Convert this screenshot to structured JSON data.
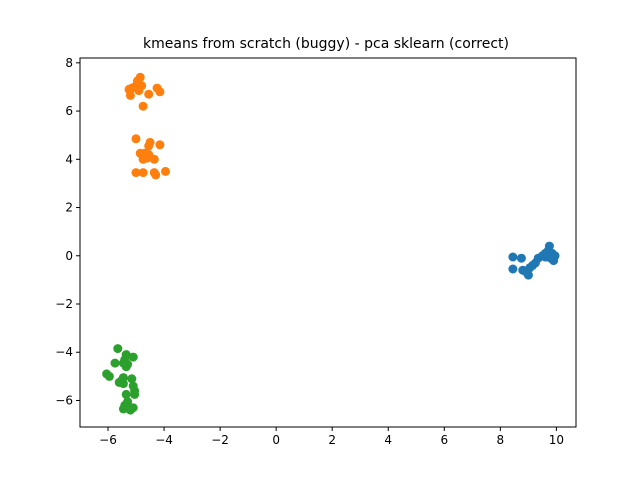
{
  "chart_data": {
    "type": "scatter",
    "title": "kmeans from scratch (buggy) - pca sklearn (correct)",
    "xlabel": "",
    "ylabel": "",
    "xlim": [
      -7.0,
      10.7
    ],
    "ylim": [
      -7.1,
      8.2
    ],
    "xticks": [
      -6,
      -4,
      -2,
      0,
      2,
      4,
      6,
      8,
      10
    ],
    "xtick_labels": [
      "−6",
      "−4",
      "−2",
      "0",
      "2",
      "4",
      "6",
      "8",
      "10"
    ],
    "yticks": [
      -6,
      -4,
      -2,
      0,
      2,
      4,
      6,
      8
    ],
    "ytick_labels": [
      "−6",
      "−4",
      "−2",
      "0",
      "2",
      "4",
      "6",
      "8"
    ],
    "grid": false,
    "legend": "none",
    "series": [
      {
        "color": "#1f77b4",
        "points": [
          [
            8.45,
            -0.05
          ],
          [
            8.45,
            -0.55
          ],
          [
            8.75,
            -0.1
          ],
          [
            8.8,
            -0.6
          ],
          [
            8.9,
            -0.65
          ],
          [
            9.0,
            -0.8
          ],
          [
            9.05,
            -0.5
          ],
          [
            9.15,
            -0.4
          ],
          [
            9.25,
            -0.3
          ],
          [
            9.35,
            -0.1
          ],
          [
            9.5,
            0.0
          ],
          [
            9.6,
            0.1
          ],
          [
            9.65,
            -0.05
          ],
          [
            9.7,
            0.2
          ],
          [
            9.75,
            0.05
          ],
          [
            9.8,
            -0.1
          ],
          [
            9.85,
            0.1
          ],
          [
            9.9,
            -0.05
          ],
          [
            9.9,
            -0.2
          ],
          [
            9.95,
            0.0
          ],
          [
            9.75,
            0.4
          ],
          [
            9.6,
            -0.05
          ]
        ]
      },
      {
        "color": "#ff7f0e",
        "points": [
          [
            -4.85,
            7.4
          ],
          [
            -4.95,
            7.25
          ],
          [
            -4.8,
            7.05
          ],
          [
            -5.05,
            7.0
          ],
          [
            -5.15,
            6.95
          ],
          [
            -5.25,
            6.9
          ],
          [
            -5.2,
            6.65
          ],
          [
            -4.9,
            6.85
          ],
          [
            -4.55,
            6.7
          ],
          [
            -4.25,
            6.95
          ],
          [
            -4.15,
            6.8
          ],
          [
            -4.75,
            6.2
          ],
          [
            -5.0,
            4.85
          ],
          [
            -4.5,
            4.7
          ],
          [
            -4.55,
            4.55
          ],
          [
            -4.15,
            4.6
          ],
          [
            -4.85,
            4.25
          ],
          [
            -4.7,
            4.25
          ],
          [
            -4.55,
            4.2
          ],
          [
            -4.75,
            4.0
          ],
          [
            -4.6,
            4.05
          ],
          [
            -4.35,
            4.0
          ],
          [
            -5.0,
            3.45
          ],
          [
            -4.75,
            3.45
          ],
          [
            -4.35,
            3.45
          ],
          [
            -4.3,
            3.35
          ],
          [
            -3.95,
            3.5
          ]
        ]
      },
      {
        "color": "#2ca02c",
        "points": [
          [
            -5.65,
            -3.85
          ],
          [
            -5.35,
            -4.1
          ],
          [
            -5.1,
            -4.2
          ],
          [
            -5.4,
            -4.3
          ],
          [
            -5.75,
            -4.45
          ],
          [
            -5.45,
            -4.45
          ],
          [
            -5.3,
            -4.5
          ],
          [
            -5.35,
            -4.6
          ],
          [
            -6.05,
            -4.9
          ],
          [
            -5.95,
            -5.0
          ],
          [
            -5.45,
            -5.05
          ],
          [
            -5.15,
            -5.1
          ],
          [
            -5.5,
            -5.15
          ],
          [
            -5.6,
            -5.25
          ],
          [
            -5.45,
            -5.3
          ],
          [
            -5.1,
            -5.4
          ],
          [
            -5.05,
            -5.6
          ],
          [
            -5.35,
            -5.75
          ],
          [
            -5.05,
            -5.75
          ],
          [
            -5.3,
            -6.05
          ],
          [
            -5.4,
            -6.2
          ],
          [
            -5.3,
            -6.25
          ],
          [
            -5.1,
            -6.3
          ],
          [
            -5.45,
            -6.35
          ],
          [
            -5.2,
            -6.4
          ]
        ]
      }
    ]
  }
}
